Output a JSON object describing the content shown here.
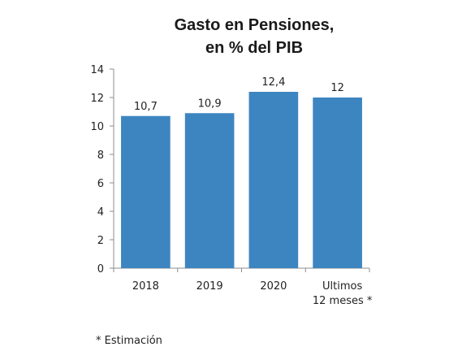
{
  "chart_data": {
    "type": "bar",
    "title_lines": [
      "Gasto en Pensiones,",
      "en % del PIB"
    ],
    "categories": [
      [
        "2018"
      ],
      [
        "2019"
      ],
      [
        "2020"
      ],
      [
        "Ultimos",
        "12 meses *"
      ]
    ],
    "values": [
      10.7,
      10.9,
      12.4,
      12
    ],
    "data_labels": [
      "10,7",
      "10,9",
      "12,4",
      "12"
    ],
    "ylim": [
      0,
      14
    ],
    "yticks": [
      0,
      2,
      4,
      6,
      8,
      10,
      12,
      14
    ],
    "grid": false,
    "legend": "none",
    "footnote": "* Estimación",
    "bar_color": "#3d85c0"
  }
}
